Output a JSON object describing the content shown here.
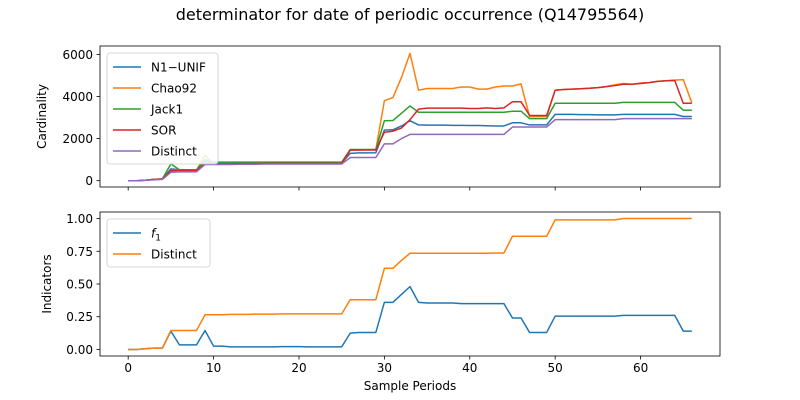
{
  "figure": {
    "title": "determinator for date of periodic occurrence (Q14795564)"
  },
  "chart_data": [
    {
      "type": "line",
      "ylabel": "Cardinality",
      "xlim": [
        -3.3,
        69.3
      ],
      "ylim": [
        -300,
        6400
      ],
      "yticks": [
        0,
        2000,
        4000,
        6000
      ],
      "xticks": [
        0,
        10,
        20,
        30,
        40,
        50,
        60
      ],
      "show_xticklabels": false,
      "legend": "upper-left",
      "x": [
        0,
        1,
        2,
        3,
        4,
        5,
        6,
        7,
        8,
        9,
        10,
        11,
        12,
        13,
        14,
        15,
        16,
        17,
        18,
        19,
        20,
        21,
        22,
        23,
        24,
        25,
        26,
        27,
        28,
        29,
        30,
        31,
        32,
        33,
        34,
        35,
        36,
        37,
        38,
        39,
        40,
        41,
        42,
        43,
        44,
        45,
        46,
        47,
        48,
        49,
        50,
        51,
        52,
        53,
        54,
        55,
        56,
        57,
        58,
        59,
        60,
        61,
        62,
        63,
        64,
        65,
        66
      ],
      "series": [
        {
          "name": "N1−UNIF",
          "color": "#1f77b4",
          "values": [
            0,
            0,
            20,
            60,
            80,
            560,
            520,
            520,
            520,
            900,
            820,
            820,
            820,
            830,
            830,
            830,
            840,
            840,
            840,
            840,
            840,
            840,
            840,
            840,
            840,
            840,
            1300,
            1320,
            1320,
            1330,
            2400,
            2420,
            2600,
            2850,
            2650,
            2640,
            2640,
            2640,
            2630,
            2630,
            2620,
            2620,
            2610,
            2600,
            2600,
            2750,
            2750,
            2650,
            2650,
            2650,
            3150,
            3150,
            3150,
            3140,
            3140,
            3130,
            3130,
            3130,
            3150,
            3150,
            3150,
            3150,
            3150,
            3150,
            3150,
            3050,
            3050
          ]
        },
        {
          "name": "Chao92",
          "color": "#ff7f0e",
          "values": [
            0,
            0,
            20,
            60,
            80,
            480,
            500,
            500,
            500,
            1200,
            800,
            800,
            800,
            810,
            810,
            810,
            820,
            820,
            820,
            820,
            820,
            820,
            820,
            820,
            820,
            820,
            1450,
            1470,
            1470,
            1480,
            3800,
            3950,
            4900,
            6050,
            4300,
            4380,
            4380,
            4380,
            4380,
            4450,
            4450,
            4350,
            4350,
            4450,
            4500,
            4500,
            4600,
            3050,
            3050,
            3050,
            4300,
            4330,
            4350,
            4370,
            4390,
            4420,
            4470,
            4560,
            4620,
            4580,
            4640,
            4660,
            4720,
            4750,
            4780,
            4800,
            3700
          ]
        },
        {
          "name": "Jack1",
          "color": "#2ca02c",
          "values": [
            0,
            0,
            20,
            60,
            80,
            800,
            520,
            520,
            520,
            1000,
            880,
            880,
            880,
            880,
            880,
            880,
            880,
            880,
            880,
            880,
            880,
            880,
            880,
            880,
            880,
            880,
            1480,
            1480,
            1480,
            1480,
            2850,
            2860,
            3200,
            3550,
            3250,
            3250,
            3250,
            3250,
            3250,
            3250,
            3250,
            3250,
            3250,
            3250,
            3250,
            3300,
            3300,
            2950,
            2950,
            2950,
            3680,
            3680,
            3680,
            3680,
            3680,
            3680,
            3680,
            3680,
            3720,
            3720,
            3720,
            3720,
            3720,
            3720,
            3720,
            3350,
            3350
          ]
        },
        {
          "name": "SOR",
          "color": "#d62728",
          "values": [
            0,
            0,
            20,
            60,
            80,
            480,
            480,
            480,
            480,
            800,
            800,
            800,
            800,
            810,
            810,
            810,
            820,
            820,
            820,
            820,
            820,
            820,
            820,
            820,
            820,
            820,
            1450,
            1450,
            1460,
            1460,
            2300,
            2350,
            2500,
            2900,
            3400,
            3450,
            3450,
            3450,
            3450,
            3450,
            3430,
            3430,
            3460,
            3430,
            3460,
            3750,
            3750,
            3100,
            3100,
            3100,
            4300,
            4330,
            4350,
            4370,
            4390,
            4420,
            4470,
            4520,
            4580,
            4580,
            4620,
            4660,
            4720,
            4750,
            4760,
            3680,
            3680
          ]
        },
        {
          "name": "Distinct",
          "color": "#9467bd",
          "values": [
            0,
            0,
            20,
            40,
            60,
            400,
            420,
            420,
            420,
            770,
            770,
            770,
            770,
            780,
            780,
            780,
            790,
            790,
            790,
            790,
            790,
            790,
            790,
            790,
            790,
            790,
            1100,
            1100,
            1100,
            1100,
            1750,
            1750,
            2000,
            2200,
            2200,
            2200,
            2200,
            2200,
            2200,
            2200,
            2200,
            2200,
            2200,
            2200,
            2200,
            2550,
            2550,
            2550,
            2550,
            2550,
            2900,
            2900,
            2900,
            2900,
            2900,
            2900,
            2900,
            2900,
            2950,
            2950,
            2950,
            2950,
            2950,
            2950,
            2950,
            2950,
            2950
          ]
        }
      ]
    },
    {
      "type": "line",
      "ylabel": "Indicators",
      "xlabel": "Sample Periods",
      "xlim": [
        -3.3,
        69.3
      ],
      "ylim": [
        -0.05,
        1.05
      ],
      "yticks": [
        0.0,
        0.25,
        0.5,
        0.75,
        1.0
      ],
      "ytick_labels": [
        "0.00",
        "0.25",
        "0.50",
        "0.75",
        "1.00"
      ],
      "xticks": [
        0,
        10,
        20,
        30,
        40,
        50,
        60
      ],
      "show_xticklabels": true,
      "legend": "upper-left",
      "x": [
        0,
        1,
        2,
        3,
        4,
        5,
        6,
        7,
        8,
        9,
        10,
        11,
        12,
        13,
        14,
        15,
        16,
        17,
        18,
        19,
        20,
        21,
        22,
        23,
        24,
        25,
        26,
        27,
        28,
        29,
        30,
        31,
        32,
        33,
        34,
        35,
        36,
        37,
        38,
        39,
        40,
        41,
        42,
        43,
        44,
        45,
        46,
        47,
        48,
        49,
        50,
        51,
        52,
        53,
        54,
        55,
        56,
        57,
        58,
        59,
        60,
        61,
        62,
        63,
        64,
        65,
        66
      ],
      "series": [
        {
          "name": "f",
          "name_sub": "1",
          "color": "#1f77b4",
          "values": [
            0.0,
            0.0,
            0.005,
            0.01,
            0.01,
            0.14,
            0.035,
            0.035,
            0.035,
            0.145,
            0.025,
            0.025,
            0.02,
            0.02,
            0.02,
            0.02,
            0.02,
            0.02,
            0.022,
            0.022,
            0.022,
            0.02,
            0.02,
            0.02,
            0.02,
            0.02,
            0.125,
            0.13,
            0.13,
            0.13,
            0.36,
            0.36,
            0.42,
            0.48,
            0.36,
            0.355,
            0.355,
            0.355,
            0.355,
            0.35,
            0.35,
            0.35,
            0.35,
            0.35,
            0.35,
            0.24,
            0.24,
            0.13,
            0.13,
            0.13,
            0.255,
            0.255,
            0.255,
            0.255,
            0.255,
            0.255,
            0.255,
            0.255,
            0.26,
            0.26,
            0.26,
            0.26,
            0.26,
            0.26,
            0.26,
            0.14,
            0.14
          ]
        },
        {
          "name": "Distinct",
          "color": "#ff7f0e",
          "values": [
            0.0,
            0.0,
            0.005,
            0.01,
            0.01,
            0.145,
            0.145,
            0.145,
            0.145,
            0.265,
            0.265,
            0.265,
            0.268,
            0.268,
            0.268,
            0.27,
            0.27,
            0.27,
            0.272,
            0.272,
            0.272,
            0.272,
            0.272,
            0.272,
            0.272,
            0.272,
            0.38,
            0.38,
            0.38,
            0.38,
            0.62,
            0.62,
            0.68,
            0.735,
            0.735,
            0.735,
            0.735,
            0.735,
            0.735,
            0.735,
            0.735,
            0.735,
            0.735,
            0.737,
            0.737,
            0.865,
            0.865,
            0.865,
            0.865,
            0.865,
            0.99,
            0.99,
            0.99,
            0.99,
            0.99,
            0.99,
            0.99,
            0.99,
            1.0,
            1.0,
            1.0,
            1.0,
            1.0,
            1.0,
            1.0,
            1.0,
            1.0
          ]
        }
      ]
    }
  ]
}
